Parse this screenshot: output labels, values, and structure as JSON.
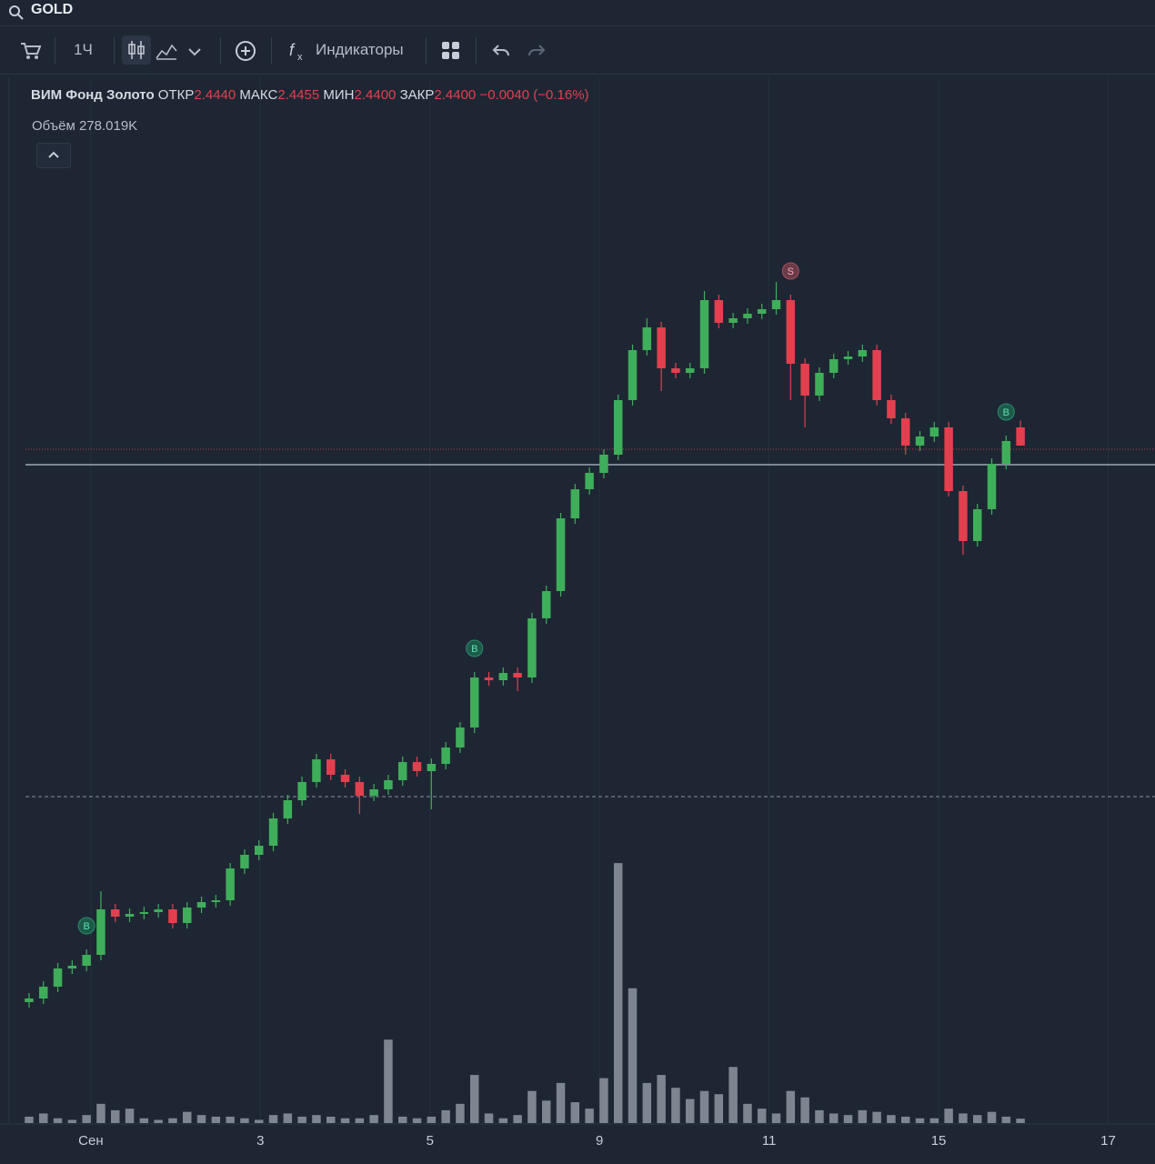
{
  "search": "GOLD",
  "toolbar": {
    "interval": "1Ч",
    "indicators": "Индикаторы"
  },
  "legend": {
    "name": "ВИМ Фонд Золото",
    "open_label": "ОТКР",
    "open": "2.4440",
    "high_label": "МАКС",
    "high": "2.4455",
    "low_label": "МИН",
    "low": "2.4400",
    "close_label": "ЗАКР",
    "close": "2.4400",
    "change": "−0.0040 (−0.16%)",
    "volume": "Объём 278.019K"
  },
  "chart_data": {
    "type": "candlestick",
    "open": [
      2.3176,
      2.3184,
      2.321,
      2.325,
      2.3256,
      2.328,
      2.338,
      2.3364,
      2.337,
      2.3374,
      2.338,
      2.335,
      2.3384,
      2.3396,
      2.34,
      2.347,
      2.35,
      2.352,
      2.358,
      2.362,
      2.366,
      2.371,
      2.3676,
      2.366,
      2.363,
      2.3644,
      2.3664,
      2.3704,
      2.3684,
      2.37,
      2.3736,
      2.378,
      2.389,
      2.3884,
      2.39,
      2.389,
      2.402,
      2.408,
      2.424,
      2.4304,
      2.434,
      2.438,
      2.45,
      2.461,
      2.466,
      2.457,
      2.456,
      2.457,
      2.472,
      2.467,
      2.468,
      2.469,
      2.47,
      2.472,
      2.458,
      2.451,
      2.456,
      2.459,
      2.4596,
      2.461,
      2.45,
      2.446,
      2.44,
      2.442,
      2.444,
      2.43,
      2.419,
      2.426,
      2.436,
      2.444
    ],
    "high": [
      2.3196,
      2.3222,
      2.3262,
      2.3268,
      2.3292,
      2.342,
      2.3392,
      2.3382,
      2.3386,
      2.3392,
      2.3392,
      2.3396,
      2.3408,
      2.3412,
      2.3482,
      2.3512,
      2.3532,
      2.3592,
      2.3632,
      2.3672,
      2.3722,
      2.3722,
      2.3688,
      2.3672,
      2.3656,
      2.3676,
      2.3716,
      2.3716,
      2.3712,
      2.3748,
      2.3792,
      2.3902,
      2.3902,
      2.3912,
      2.3912,
      2.4032,
      2.4092,
      2.4252,
      2.4316,
      2.4352,
      2.4392,
      2.4512,
      2.4622,
      2.468,
      2.4672,
      2.4582,
      2.4582,
      2.474,
      2.4732,
      2.4692,
      2.4702,
      2.4712,
      2.476,
      2.4732,
      2.4592,
      2.4572,
      2.4602,
      2.4608,
      2.4622,
      2.4622,
      2.4512,
      2.4472,
      2.4432,
      2.4452,
      2.4452,
      2.4312,
      2.4272,
      2.4372,
      2.4422,
      2.4455
    ],
    "low": [
      2.3164,
      2.3172,
      2.3198,
      2.3238,
      2.3244,
      2.3268,
      2.3352,
      2.3352,
      2.3358,
      2.3362,
      2.3338,
      2.3338,
      2.3372,
      2.3384,
      2.3388,
      2.3458,
      2.3488,
      2.3508,
      2.3568,
      2.3608,
      2.3648,
      2.3664,
      2.3648,
      2.359,
      2.3618,
      2.3632,
      2.3652,
      2.3672,
      2.36,
      2.3688,
      2.3724,
      2.3768,
      2.3872,
      2.3872,
      2.386,
      2.3878,
      2.4008,
      2.4068,
      2.4228,
      2.4292,
      2.4328,
      2.4368,
      2.4488,
      2.4598,
      2.452,
      2.4548,
      2.4548,
      2.4558,
      2.4658,
      2.4658,
      2.4668,
      2.4678,
      2.4688,
      2.45,
      2.444,
      2.4498,
      2.4548,
      2.4578,
      2.4584,
      2.4488,
      2.4448,
      2.438,
      2.4388,
      2.4408,
      2.4288,
      2.416,
      2.4178,
      2.4248,
      2.4348,
      2.44
    ],
    "close": [
      2.3184,
      2.321,
      2.325,
      2.3256,
      2.328,
      2.338,
      2.3364,
      2.337,
      2.3374,
      2.338,
      2.335,
      2.3384,
      2.3396,
      2.34,
      2.347,
      2.35,
      2.352,
      2.358,
      2.362,
      2.366,
      2.371,
      2.3676,
      2.366,
      2.363,
      2.3644,
      2.3664,
      2.3704,
      2.3684,
      2.37,
      2.3736,
      2.378,
      2.389,
      2.3884,
      2.39,
      2.389,
      2.402,
      2.408,
      2.424,
      2.4304,
      2.434,
      2.438,
      2.45,
      2.461,
      2.466,
      2.457,
      2.456,
      2.457,
      2.472,
      2.467,
      2.468,
      2.469,
      2.47,
      2.472,
      2.458,
      2.451,
      2.456,
      2.459,
      2.4596,
      2.461,
      2.45,
      2.446,
      2.44,
      2.442,
      2.444,
      2.43,
      2.419,
      2.426,
      2.436,
      2.441,
      2.44
    ],
    "volume": [
      400000,
      600000,
      300000,
      200000,
      500000,
      1200000,
      800000,
      900000,
      300000,
      200000,
      300000,
      700000,
      500000,
      400000,
      400000,
      300000,
      200000,
      500000,
      600000,
      400000,
      500000,
      400000,
      300000,
      300000,
      500000,
      5200000,
      400000,
      300000,
      400000,
      800000,
      1200000,
      3000000,
      600000,
      300000,
      500000,
      2000000,
      1400000,
      2500000,
      1300000,
      900000,
      2800000,
      16200000,
      8400000,
      2500000,
      3000000,
      2200000,
      1500000,
      2000000,
      1800000,
      3500000,
      1200000,
      900000,
      600000,
      2000000,
      1600000,
      800000,
      600000,
      500000,
      800000,
      700000,
      500000,
      400000,
      300000,
      300000,
      900000,
      600000,
      500000,
      700000,
      400000,
      278019
    ],
    "signals": [
      null,
      null,
      null,
      null,
      "B",
      null,
      null,
      null,
      null,
      null,
      null,
      null,
      null,
      null,
      null,
      null,
      null,
      null,
      null,
      null,
      null,
      null,
      null,
      null,
      null,
      null,
      null,
      null,
      null,
      null,
      null,
      "B",
      null,
      null,
      null,
      null,
      null,
      null,
      null,
      null,
      null,
      null,
      null,
      null,
      null,
      null,
      null,
      null,
      null,
      null,
      null,
      null,
      null,
      "S",
      null,
      null,
      null,
      null,
      null,
      null,
      null,
      null,
      null,
      null,
      null,
      null,
      null,
      null,
      "B",
      null
    ],
    "xlim": [
      -0.25,
      78.36
    ],
    "xticks": [
      {
        "value": 4.3,
        "label": "Сен"
      },
      {
        "value": 16.1,
        "label": "3"
      },
      {
        "value": 27.9,
        "label": "5"
      },
      {
        "value": 39.7,
        "label": "9"
      },
      {
        "value": 51.5,
        "label": "11"
      },
      {
        "value": 63.3,
        "label": "15"
      },
      {
        "value": 75.1,
        "label": "17"
      }
    ],
    "ylim": [
      2.291,
      2.521
    ],
    "volume_lim": [
      0,
      17000000
    ],
    "price_lines": [
      {
        "value": 2.3628,
        "style": "dashed",
        "color": "#8a93a3"
      },
      {
        "value": 2.4358,
        "style": "solid",
        "color": "#9aa6b8"
      },
      {
        "value": 2.4392,
        "style": "dotted",
        "color": "#b0404c"
      }
    ],
    "up_color": "#3fae5a",
    "down_color": "#e2404f",
    "volume_color": "#7d8591",
    "grid": true
  }
}
